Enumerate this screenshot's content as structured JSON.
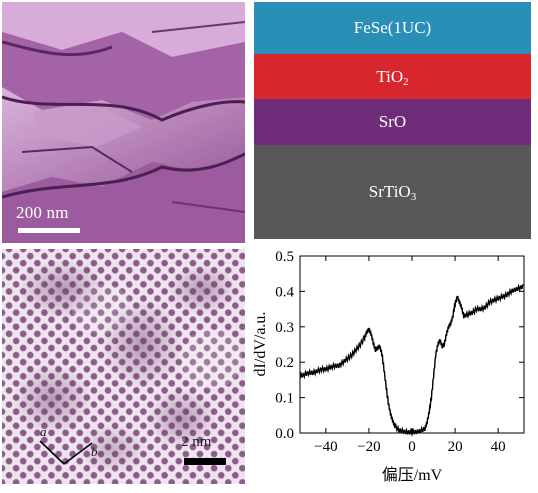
{
  "panel_a": {
    "scale_label": "200 nm"
  },
  "panel_b": {
    "layers": [
      {
        "name": "FeSe(1UC)",
        "color": "#2a8fb7"
      },
      {
        "name": "TiO",
        "subscript": "2",
        "color": "#d7262c"
      },
      {
        "name": "SrO",
        "color": "#6f2c7a"
      },
      {
        "name": "SrTiO",
        "subscript": "3",
        "color": "#585858"
      }
    ]
  },
  "panel_c": {
    "scale_label": "2 nm",
    "lattice_label_a": "a",
    "lattice_label_b": "b"
  },
  "chart_data": {
    "type": "line",
    "xlabel": "偏压/mV",
    "ylabel": "dI/dV/a.u.",
    "xlim": [
      -52,
      52
    ],
    "ylim": [
      0,
      0.5
    ],
    "xticks": [
      -40,
      -20,
      0,
      20,
      40
    ],
    "yticks": [
      0.0,
      0.1,
      0.2,
      0.3,
      0.4,
      0.5
    ],
    "xtick_labels": [
      "−40",
      "−20",
      "0",
      "20",
      "40"
    ],
    "ytick_labels": [
      "0.0",
      "0.1",
      "0.2",
      "0.3",
      "0.4",
      "0.5"
    ],
    "grid": false,
    "series": [
      {
        "x": [
          -52,
          -50,
          -48,
          -46,
          -44,
          -42,
          -40,
          -38,
          -36,
          -34,
          -32,
          -30,
          -28,
          -26,
          -24,
          -22,
          -21,
          -20,
          -19,
          -18,
          -17,
          -16,
          -15,
          -14,
          -13,
          -12,
          -11,
          -10,
          -9,
          -8,
          -6,
          -4,
          -2,
          0,
          2,
          4,
          6,
          7,
          8,
          9,
          10,
          11,
          12,
          13,
          14,
          15,
          16,
          17,
          18,
          19,
          20,
          21,
          22,
          23,
          24,
          26,
          28,
          30,
          32,
          34,
          36,
          38,
          40,
          42,
          44,
          46,
          48,
          50,
          52
        ],
        "y": [
          0.16,
          0.165,
          0.17,
          0.17,
          0.175,
          0.18,
          0.18,
          0.185,
          0.19,
          0.19,
          0.2,
          0.21,
          0.22,
          0.235,
          0.25,
          0.27,
          0.285,
          0.293,
          0.28,
          0.255,
          0.235,
          0.24,
          0.245,
          0.225,
          0.18,
          0.13,
          0.085,
          0.055,
          0.035,
          0.02,
          0.008,
          0.004,
          0.002,
          0.002,
          0.003,
          0.006,
          0.012,
          0.03,
          0.06,
          0.1,
          0.16,
          0.22,
          0.25,
          0.262,
          0.245,
          0.25,
          0.28,
          0.3,
          0.31,
          0.33,
          0.365,
          0.385,
          0.37,
          0.355,
          0.33,
          0.335,
          0.34,
          0.35,
          0.35,
          0.355,
          0.37,
          0.375,
          0.38,
          0.385,
          0.39,
          0.4,
          0.405,
          0.41,
          0.415
        ]
      }
    ]
  }
}
